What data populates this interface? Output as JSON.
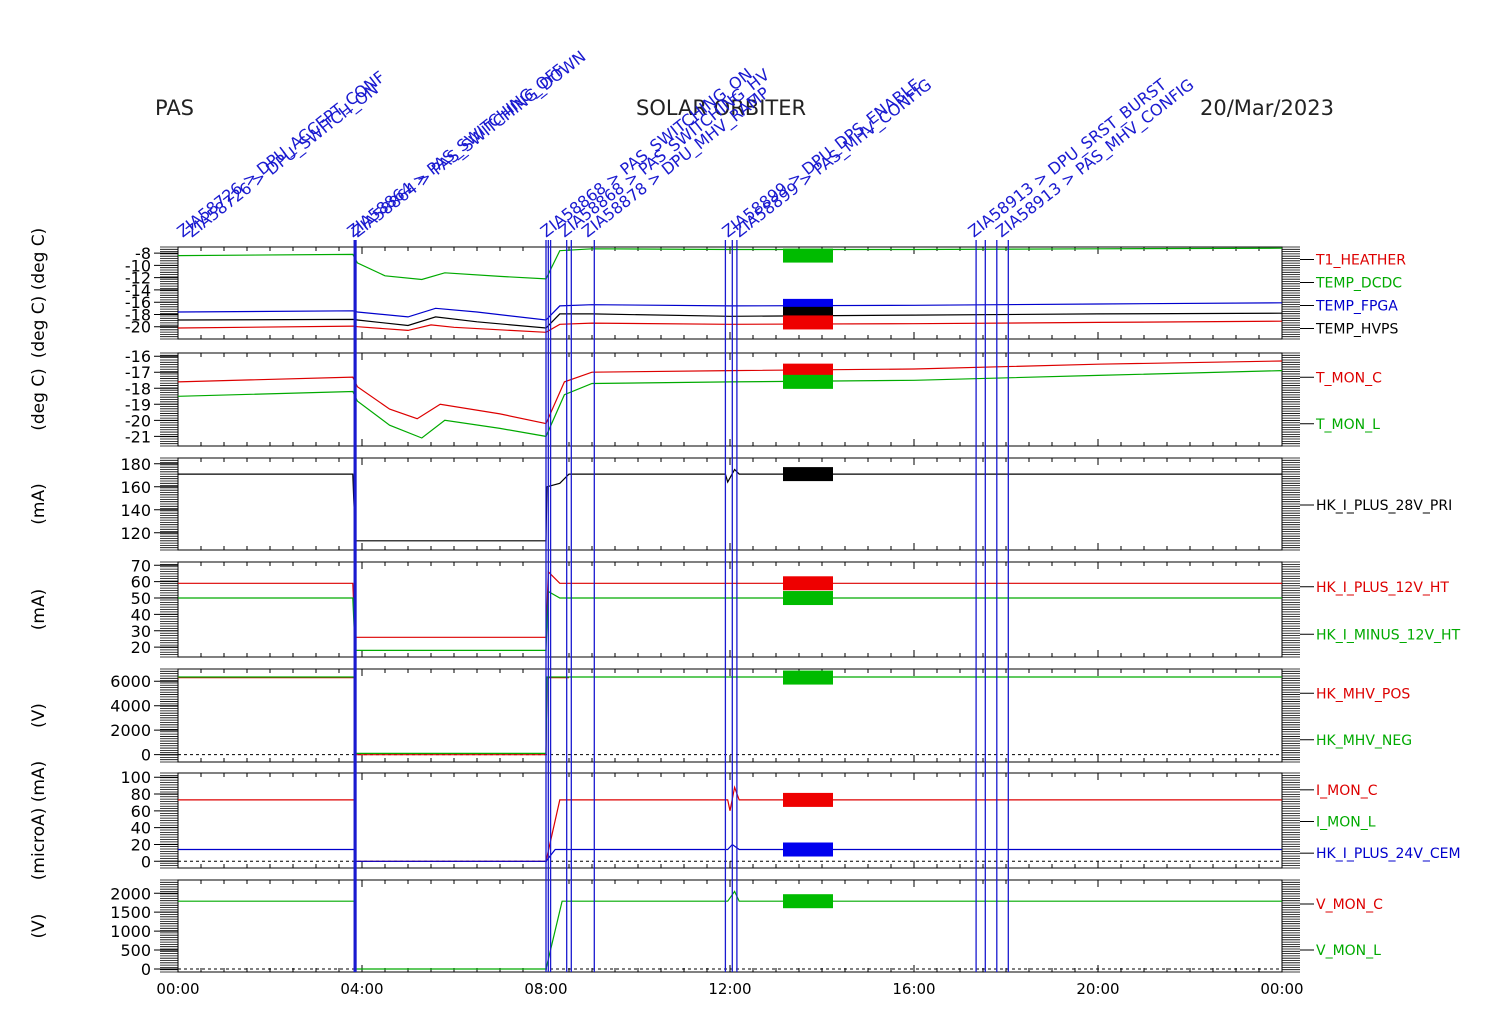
{
  "header": {
    "left": "PAS",
    "center": "SOLAR ORBITER",
    "right": "20/Mar/2023"
  },
  "chart_data": {
    "type": "line",
    "x_ticks": [
      "00:00",
      "04:00",
      "08:00",
      "12:00",
      "16:00",
      "20:00",
      "00:00"
    ],
    "x_range_hours": [
      0,
      24
    ],
    "event_lines_hours": [
      3.83,
      3.85,
      3.87,
      8.0,
      8.05,
      8.1,
      8.45,
      8.55,
      9.05,
      11.9,
      12.05,
      12.15,
      17.35,
      17.55,
      17.8,
      18.05
    ],
    "event_labels": [
      {
        "t": 0.1,
        "text": "ZIA58726 > DPU_ACCEPT_CONF"
      },
      {
        "t": 0.3,
        "text": "ZIA58726 > DPU_SWITCH_ON"
      },
      {
        "t": 3.8,
        "text": "ZIA58864 > PAS_SWITCHING_OFF"
      },
      {
        "t": 3.9,
        "text": "ZIA58864 > PAS_SWITCHING_DOWN"
      },
      {
        "t": 8.0,
        "text": "ZIA58868 > PAS_SWITCHING_ON"
      },
      {
        "t": 8.4,
        "text": "ZIA58868 > PAS_SWITCHING_HV"
      },
      {
        "t": 8.9,
        "text": "ZIA58878 > DPU_MHV_RAMP"
      },
      {
        "t": 11.95,
        "text": "ZIA58899 > DPU_DPS_ENABLE"
      },
      {
        "t": 12.2,
        "text": "ZIA58899 > PAS_MHV_CONFIG"
      },
      {
        "t": 17.3,
        "text": "ZIA58913 > DPU_SRST_BURST"
      },
      {
        "t": 17.9,
        "text": "ZIA58913 > PAS_MHV_CONFIG"
      }
    ],
    "panels": [
      {
        "ylabel": "(deg C) (deg C)",
        "yticks": [
          "-8",
          "-10",
          "-12",
          "-14",
          "-16",
          "-18",
          "-20"
        ],
        "ylim": [
          -22,
          -7
        ],
        "series": [
          {
            "name": "T1_HEATHER",
            "color": "#dd0000",
            "points": [
              [
                0,
                -20.2
              ],
              [
                3.85,
                -19.9
              ],
              [
                3.9,
                -20.0
              ],
              [
                5.0,
                -20.6
              ],
              [
                5.5,
                -19.7
              ],
              [
                6.0,
                -20.1
              ],
              [
                8.0,
                -20.9
              ],
              [
                8.3,
                -19.6
              ],
              [
                9.0,
                -19.4
              ],
              [
                12,
                -19.6
              ],
              [
                16,
                -19.5
              ],
              [
                20,
                -19.3
              ],
              [
                24,
                -19.1
              ]
            ]
          },
          {
            "name": "TEMP_DCDC",
            "color": "#00aa00",
            "points": [
              [
                0,
                -8.4
              ],
              [
                3.8,
                -8.2
              ],
              [
                3.9,
                -9.6
              ],
              [
                4.5,
                -11.7
              ],
              [
                5.3,
                -12.3
              ],
              [
                5.8,
                -11.2
              ],
              [
                7.0,
                -11.8
              ],
              [
                8.0,
                -12.2
              ],
              [
                8.3,
                -7.6
              ],
              [
                9,
                -7.3
              ],
              [
                12,
                -7.4
              ],
              [
                16,
                -7.4
              ],
              [
                20,
                -7.3
              ],
              [
                24,
                -7.2
              ]
            ]
          },
          {
            "name": "TEMP_FPGA",
            "color": "#0000cc",
            "points": [
              [
                0,
                -17.6
              ],
              [
                3.8,
                -17.4
              ],
              [
                3.9,
                -17.6
              ],
              [
                5.0,
                -18.4
              ],
              [
                5.6,
                -17.0
              ],
              [
                6.5,
                -17.6
              ],
              [
                8.0,
                -18.9
              ],
              [
                8.3,
                -16.6
              ],
              [
                9,
                -16.4
              ],
              [
                12,
                -16.6
              ],
              [
                16,
                -16.5
              ],
              [
                20,
                -16.3
              ],
              [
                24,
                -16.1
              ]
            ]
          },
          {
            "name": "TEMP_HVPS",
            "color": "#000000",
            "points": [
              [
                0,
                -18.9
              ],
              [
                3.8,
                -18.8
              ],
              [
                3.9,
                -18.9
              ],
              [
                5.0,
                -19.8
              ],
              [
                5.6,
                -18.4
              ],
              [
                6.5,
                -19.2
              ],
              [
                8.0,
                -20.2
              ],
              [
                8.3,
                -17.9
              ],
              [
                9,
                -17.9
              ],
              [
                12,
                -18.3
              ],
              [
                16,
                -18.1
              ],
              [
                20,
                -17.9
              ],
              [
                24,
                -17.8
              ]
            ]
          }
        ]
      },
      {
        "ylabel": "(deg C)",
        "yticks": [
          "-16",
          "-17",
          "-18",
          "-19",
          "-20",
          "-21"
        ],
        "ylim": [
          -21.6,
          -15.8
        ],
        "series": [
          {
            "name": "T_MON_C",
            "color": "#dd0000",
            "points": [
              [
                0,
                -17.6
              ],
              [
                3.8,
                -17.3
              ],
              [
                3.9,
                -17.9
              ],
              [
                4.6,
                -19.3
              ],
              [
                5.2,
                -19.9
              ],
              [
                5.7,
                -19.0
              ],
              [
                7.0,
                -19.6
              ],
              [
                8.0,
                -20.2
              ],
              [
                8.4,
                -17.6
              ],
              [
                9,
                -17.0
              ],
              [
                12,
                -16.9
              ],
              [
                16,
                -16.8
              ],
              [
                20,
                -16.5
              ],
              [
                24,
                -16.3
              ]
            ]
          },
          {
            "name": "T_MON_L",
            "color": "#00aa00",
            "points": [
              [
                0,
                -18.5
              ],
              [
                3.8,
                -18.2
              ],
              [
                3.9,
                -18.8
              ],
              [
                4.6,
                -20.3
              ],
              [
                5.3,
                -21.1
              ],
              [
                5.8,
                -20.0
              ],
              [
                7.0,
                -20.5
              ],
              [
                8.0,
                -21.0
              ],
              [
                8.4,
                -18.4
              ],
              [
                9,
                -17.7
              ],
              [
                12,
                -17.6
              ],
              [
                16,
                -17.5
              ],
              [
                20,
                -17.2
              ],
              [
                24,
                -16.9
              ]
            ]
          }
        ]
      },
      {
        "ylabel": "(mA)",
        "yticks": [
          "180",
          "160",
          "140",
          "120"
        ],
        "ylim": [
          105,
          185
        ],
        "series": [
          {
            "name": "HK_I_PLUS_28V_PRI",
            "color": "#000000",
            "points": [
              [
                0,
                171
              ],
              [
                3.8,
                171
              ],
              [
                3.82,
                150
              ],
              [
                3.86,
                113
              ],
              [
                8.0,
                113
              ],
              [
                8.02,
                160
              ],
              [
                8.3,
                163
              ],
              [
                8.5,
                171
              ],
              [
                11.9,
                171
              ],
              [
                11.95,
                164
              ],
              [
                12.1,
                175
              ],
              [
                12.2,
                171
              ],
              [
                24,
                171
              ]
            ]
          }
        ]
      },
      {
        "ylabel": "(mA)",
        "yticks": [
          "70",
          "60",
          "50",
          "40",
          "30",
          "20"
        ],
        "ylim": [
          14,
          72
        ],
        "series": [
          {
            "name": "HK_I_PLUS_12V_HT",
            "color": "#dd0000",
            "points": [
              [
                0,
                59
              ],
              [
                3.8,
                59
              ],
              [
                3.85,
                26
              ],
              [
                8.0,
                26
              ],
              [
                8.05,
                66
              ],
              [
                8.3,
                59
              ],
              [
                24,
                59
              ]
            ]
          },
          {
            "name": "HK_I_MINUS_12V_HT",
            "color": "#00aa00",
            "points": [
              [
                0,
                50
              ],
              [
                3.8,
                50
              ],
              [
                3.85,
                18
              ],
              [
                8.0,
                18
              ],
              [
                8.05,
                54
              ],
              [
                8.3,
                50
              ],
              [
                24,
                50
              ]
            ]
          }
        ]
      },
      {
        "ylabel": "(V)",
        "yticks": [
          "6000",
          "4000",
          "2000",
          "0"
        ],
        "ylim": [
          -600,
          7000
        ],
        "series": [
          {
            "name": "HK_MHV_POS",
            "color": "#dd0000",
            "points": [
              [
                0,
                6300
              ],
              [
                3.83,
                6300
              ],
              [
                3.85,
                0
              ],
              [
                8.0,
                0
              ],
              [
                8.02,
                6300
              ],
              [
                8.5,
                6300
              ]
            ]
          },
          {
            "name": "HK_MHV_NEG",
            "color": "#00aa00",
            "points": [
              [
                0,
                6350
              ],
              [
                3.83,
                6350
              ],
              [
                3.85,
                100
              ],
              [
                8.0,
                100
              ],
              [
                8.02,
                6350
              ],
              [
                24,
                6350
              ]
            ]
          }
        ]
      },
      {
        "ylabel": "(microA) (mA)",
        "yticks": [
          "100",
          "80",
          "60",
          "40",
          "20",
          "0"
        ],
        "ylim": [
          -8,
          105
        ],
        "series": [
          {
            "name": "I_MON_C",
            "color": "#dd0000",
            "points": [
              [
                0,
                73
              ],
              [
                3.83,
                73
              ],
              [
                3.86,
                0
              ],
              [
                8.0,
                0
              ],
              [
                8.3,
                73
              ],
              [
                11.95,
                73
              ],
              [
                12.0,
                60
              ],
              [
                12.1,
                88
              ],
              [
                12.2,
                73
              ],
              [
                24,
                73
              ]
            ]
          },
          {
            "name": "I_MON_L",
            "color": "#00aa00",
            "points": []
          },
          {
            "name": "HK_I_PLUS_24V_CEM",
            "color": "#0000cc",
            "points": [
              [
                0,
                14
              ],
              [
                3.83,
                14
              ],
              [
                3.86,
                0
              ],
              [
                8.0,
                0
              ],
              [
                8.2,
                14
              ],
              [
                11.95,
                14
              ],
              [
                12.05,
                20
              ],
              [
                12.2,
                14
              ],
              [
                24,
                14
              ]
            ]
          }
        ]
      },
      {
        "ylabel": "(V)",
        "yticks": [
          "2000",
          "1500",
          "1000",
          "500",
          "0"
        ],
        "ylim": [
          -80,
          2350
        ],
        "series": [
          {
            "name": "V_MON_C",
            "color": "#dd0000",
            "points": []
          },
          {
            "name": "V_MON_L",
            "color": "#00aa00",
            "points": [
              [
                0,
                1790
              ],
              [
                3.83,
                1790
              ],
              [
                3.86,
                0
              ],
              [
                8.0,
                0
              ],
              [
                8.35,
                1790
              ],
              [
                11.95,
                1790
              ],
              [
                12.1,
                2050
              ],
              [
                12.2,
                1790
              ],
              [
                24,
                1790
              ]
            ]
          }
        ]
      }
    ],
    "markers": [
      {
        "panel": 0,
        "colors": [
          "#00bb00"
        ],
        "y_values": [
          -8.4
        ]
      },
      {
        "panel": 0,
        "colors": [
          "#0000ee",
          "#000000",
          "#ee0000"
        ],
        "y_values": [
          -16.6,
          -17.9,
          -19.3
        ]
      },
      {
        "panel": 1,
        "colors": [
          "#ee0000",
          "#00bb00"
        ],
        "y_values": [
          -16.9,
          -17.6
        ]
      },
      {
        "panel": 2,
        "colors": [
          "#000000"
        ],
        "y_values": [
          171
        ]
      },
      {
        "panel": 3,
        "colors": [
          "#ee0000",
          "#00bb00"
        ],
        "y_values": [
          59,
          50
        ]
      },
      {
        "panel": 4,
        "colors": [
          "#00bb00"
        ],
        "y_values": [
          6300
        ]
      },
      {
        "panel": 5,
        "colors": [
          "#ee0000",
          "#0000ee"
        ],
        "y_values": [
          73,
          14
        ]
      },
      {
        "panel": 6,
        "colors": [
          "#00bb00"
        ],
        "y_values": [
          1790
        ]
      }
    ],
    "dashed_zero_panels": [
      4,
      5,
      6
    ]
  }
}
